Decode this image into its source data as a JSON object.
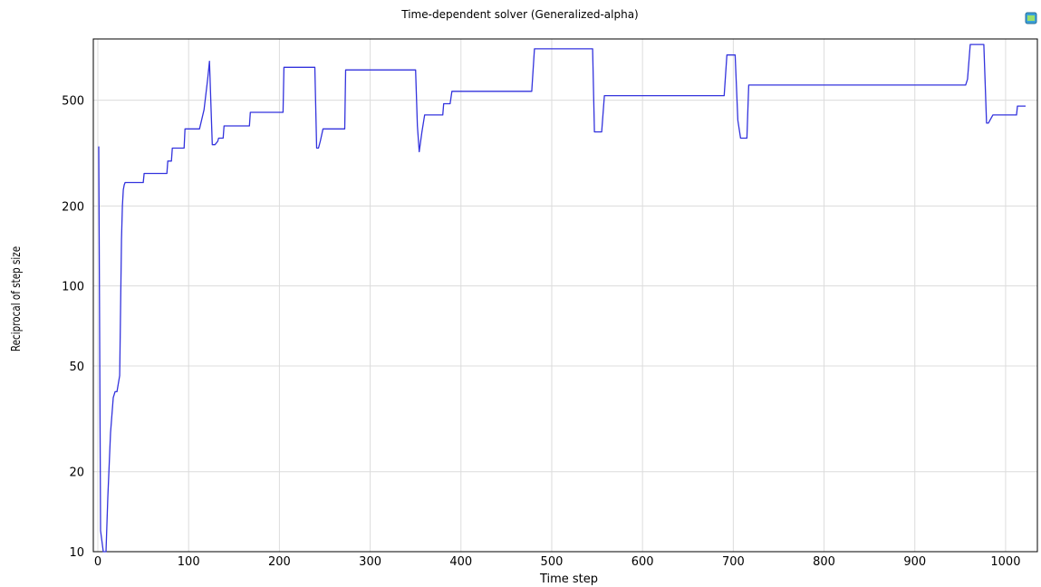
{
  "chart_data": {
    "type": "line",
    "title": "Time-dependent solver (Generalized-alpha)",
    "xlabel": "Time step",
    "ylabel": "Reciprocal of step size",
    "xlim": [
      -5,
      1035
    ],
    "ylim": [
      10,
      850
    ],
    "yscale": "log",
    "grid": true,
    "x_ticks": [
      0,
      100,
      200,
      300,
      400,
      500,
      600,
      700,
      800,
      900,
      1000
    ],
    "y_ticks": [
      10,
      20,
      50,
      100,
      200,
      500
    ],
    "series": [
      {
        "color": "#3333dd",
        "x": [
          1,
          3,
          6,
          9,
          11,
          14,
          17,
          19,
          21,
          24,
          26,
          27,
          28,
          29,
          30,
          31,
          50,
          51,
          76,
          77,
          81,
          82,
          95,
          96,
          112,
          117,
          121,
          123,
          126,
          129,
          132,
          133,
          138,
          139,
          167,
          168,
          204,
          205,
          239,
          241,
          243,
          245,
          248,
          249,
          272,
          273,
          350,
          352,
          354,
          357,
          360,
          361,
          380,
          381,
          388,
          390,
          478,
          481,
          545,
          547,
          555,
          558,
          690,
          693,
          702,
          705,
          708,
          712,
          715,
          717,
          956,
          958,
          961,
          974,
          976,
          979,
          981,
          986,
          987,
          1012,
          1013,
          1022
        ],
        "y": [
          335,
          12,
          10,
          10,
          16,
          28,
          38,
          40,
          40,
          46,
          150,
          200,
          230,
          240,
          245,
          245,
          245,
          265,
          265,
          295,
          295,
          330,
          330,
          390,
          390,
          460,
          600,
          700,
          340,
          340,
          350,
          360,
          360,
          400,
          400,
          450,
          450,
          665,
          665,
          330,
          330,
          350,
          390,
          390,
          390,
          650,
          650,
          400,
          320,
          380,
          440,
          440,
          440,
          485,
          485,
          540,
          540,
          780,
          780,
          380,
          380,
          520,
          520,
          740,
          740,
          420,
          360,
          360,
          360,
          570,
          570,
          600,
          810,
          810,
          810,
          410,
          410,
          440,
          440,
          440,
          475,
          475
        ]
      }
    ]
  }
}
